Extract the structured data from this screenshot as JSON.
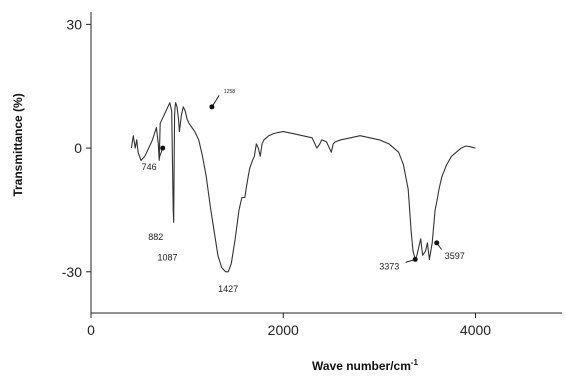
{
  "chart_data": {
    "type": "line",
    "xlabel": "Wave number/cm",
    "xlabel_sup": "-1",
    "ylabel": "Transmittance (%)",
    "xlim": [
      0,
      4900
    ],
    "ylim": [
      -40,
      33
    ],
    "xticks": [
      0,
      2000,
      4000
    ],
    "yticks": [
      30,
      0,
      -30
    ],
    "grid": false,
    "series": [
      {
        "x": [
          420,
          440,
          460,
          475,
          490,
          520,
          560,
          600,
          640,
          680,
          700,
          710,
          720,
          740,
          760,
          780,
          800,
          820,
          840,
          855,
          860,
          865,
          870,
          875,
          880,
          895,
          910,
          920,
          940,
          960,
          980,
          1000,
          1020,
          1050,
          1080,
          1120,
          1160,
          1200,
          1240,
          1280,
          1320,
          1360,
          1400,
          1427,
          1460,
          1500,
          1540,
          1570,
          1600,
          1620,
          1650,
          1680,
          1700,
          1720,
          1740,
          1760,
          1780,
          1800,
          1850,
          1900,
          1950,
          2000,
          2100,
          2200,
          2300,
          2350,
          2380,
          2400,
          2450,
          2500,
          2520,
          2540,
          2600,
          2700,
          2800,
          2900,
          3000,
          3100,
          3200,
          3250,
          3300,
          3330,
          3350,
          3373,
          3390,
          3410,
          3430,
          3450,
          3480,
          3500,
          3520,
          3550,
          3580,
          3597,
          3620,
          3650,
          3700,
          3750,
          3800,
          3850,
          3900,
          3950,
          4000
        ],
        "y": [
          0,
          3,
          0,
          2,
          -1,
          -3,
          -2,
          0,
          2,
          5,
          1,
          -3,
          6,
          7,
          8,
          9,
          10,
          11,
          9,
          -15,
          -18,
          -5,
          8,
          10,
          11,
          10,
          7,
          4,
          8,
          10,
          9,
          7,
          6,
          5,
          4,
          2,
          -2,
          -7,
          -14,
          -20,
          -26,
          -29,
          -30,
          -30,
          -28,
          -22,
          -15,
          -12,
          -12,
          -9,
          -5,
          -3,
          -2,
          1,
          0,
          -2,
          1,
          2,
          3,
          3.5,
          3.8,
          4,
          3.5,
          3,
          2.5,
          0,
          1,
          2,
          1.5,
          -1,
          1,
          1.5,
          2,
          2.5,
          3,
          2.5,
          2,
          1,
          -1,
          -4,
          -10,
          -20,
          -25,
          -27,
          -26,
          -24,
          -22,
          -26,
          -25,
          -23,
          -27,
          -23,
          -15,
          -13,
          -10,
          -7,
          -4,
          -2,
          -1,
          0,
          0.5,
          0.3,
          0
        ]
      }
    ],
    "annotations": [
      {
        "text": "746",
        "x": 746,
        "y": 0
      },
      {
        "text": "882",
        "x": 882,
        "y": -15
      },
      {
        "text": "1087",
        "x": 1087,
        "y": -18
      },
      {
        "text": "1258",
        "x": 1258,
        "y": 10
      },
      {
        "text": "1427",
        "x": 1427,
        "y": -30
      },
      {
        "text": "3373",
        "x": 3373,
        "y": -27
      },
      {
        "text": "3597",
        "x": 3597,
        "y": -23
      }
    ]
  }
}
